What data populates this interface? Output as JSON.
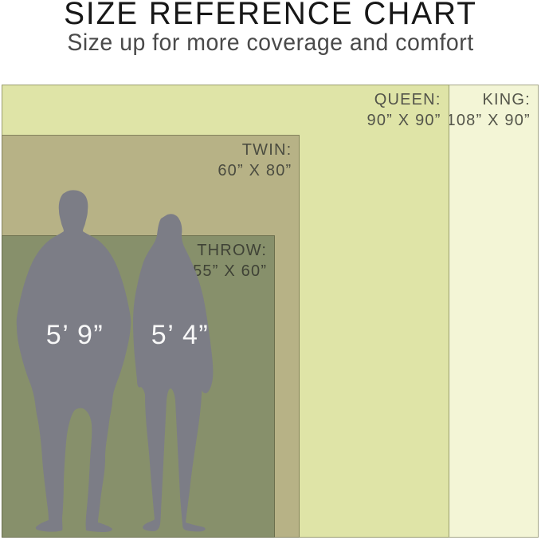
{
  "header": {
    "title": "SIZE REFERENCE CHART",
    "subtitle": "Size up for more coverage and comfort"
  },
  "chart_data": {
    "type": "area-comparison",
    "title": "SIZE REFERENCE CHART",
    "subtitle": "Size up for more coverage and comfort",
    "units": "inches",
    "anchor": "bottom-left",
    "sizes": [
      {
        "id": "king",
        "name": "KING:",
        "dims_label": "108” X 90”",
        "width_in": 108,
        "height_in": 90,
        "fill": "#f3f5d6",
        "label_color": "#55564b"
      },
      {
        "id": "queen",
        "name": "QUEEN:",
        "dims_label": "90” X 90”",
        "width_in": 90,
        "height_in": 90,
        "fill": "#dfe4a7",
        "label_color": "#53544a"
      },
      {
        "id": "twin",
        "name": "TWIN:",
        "dims_label": "60” X 80”",
        "width_in": 60,
        "height_in": 80,
        "fill": "#b7b286",
        "label_color": "#4b4c40"
      },
      {
        "id": "throw",
        "name": "THROW:",
        "dims_label": "55” X 60”",
        "width_in": 55,
        "height_in": 60,
        "fill": "#87906b",
        "label_color": "#3f4236"
      }
    ],
    "figures": [
      {
        "id": "man",
        "label": "5’ 9”",
        "height_in": 69
      },
      {
        "id": "woman",
        "label": "5’ 4”",
        "height_in": 64
      }
    ],
    "silhouette_color": "#7c7d86",
    "figure_label_color": "#f7f7f7"
  }
}
